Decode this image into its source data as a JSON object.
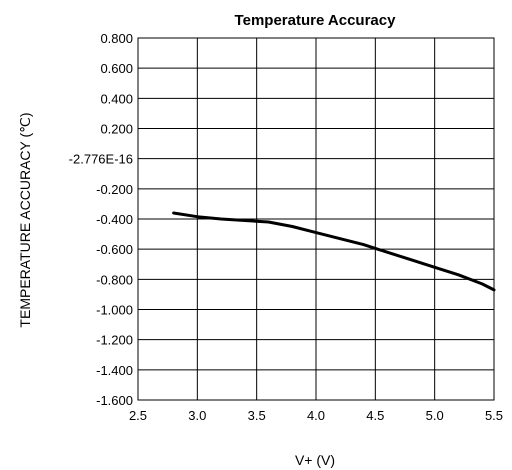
{
  "chart_data": {
    "type": "line",
    "title": "Temperature Accuracy",
    "xlabel": "V+ (V)",
    "ylabel": "TEMPERATURE ACCURACY (℃)",
    "xlim": [
      2.5,
      5.5
    ],
    "ylim": [
      -1.6,
      0.8
    ],
    "x_ticks": [
      2.5,
      3.0,
      3.5,
      4.0,
      4.5,
      5.0,
      5.5
    ],
    "x_tick_labels": [
      "2.5",
      "3.0",
      "3.5",
      "4.0",
      "4.5",
      "5.0",
      "5.5"
    ],
    "y_ticks": [
      0.8,
      0.6,
      0.4,
      0.2,
      0,
      -0.2,
      -0.4,
      -0.6,
      -0.8,
      -1.0,
      -1.2,
      -1.4,
      -1.6
    ],
    "y_tick_labels": [
      "0.800",
      "0.600",
      "0.400",
      "0.200",
      "-2.776E-16",
      "-0.200",
      "-0.400",
      "-0.600",
      "-0.800",
      "-1.000",
      "-1.200",
      "-1.400",
      "-1.600"
    ],
    "grid": true,
    "legend": false,
    "series": [
      {
        "color": "#000000",
        "x": [
          2.8,
          3.0,
          3.2,
          3.4,
          3.6,
          3.8,
          4.0,
          4.2,
          4.4,
          4.6,
          4.8,
          5.0,
          5.2,
          5.4,
          5.5
        ],
        "y": [
          -0.36,
          -0.385,
          -0.4,
          -0.41,
          -0.42,
          -0.45,
          -0.49,
          -0.53,
          -0.57,
          -0.62,
          -0.67,
          -0.72,
          -0.77,
          -0.83,
          -0.87
        ]
      }
    ]
  }
}
